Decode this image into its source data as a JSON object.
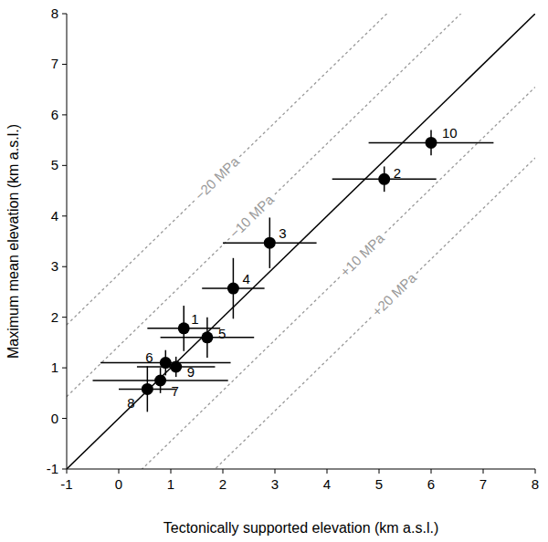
{
  "chart_data": {
    "type": "scatter",
    "x_label": "Tectonically supported elevation (km a.s.l.)",
    "y_label": "Maximum mean elevation (km a.s.l.)",
    "xlim": [
      -1,
      8
    ],
    "ylim": [
      -1,
      8
    ],
    "xticks": [
      -1,
      0,
      1,
      2,
      3,
      4,
      5,
      6,
      7,
      8
    ],
    "yticks": [
      -1,
      0,
      1,
      2,
      3,
      4,
      5,
      6,
      7,
      8
    ],
    "grid": false,
    "series": [
      {
        "color": "#000000",
        "marker": "circle",
        "point_labels": [
          "1",
          "2",
          "3",
          "4",
          "5",
          "6",
          "7",
          "8",
          "9",
          "10"
        ],
        "x": [
          1.25,
          5.1,
          2.9,
          2.2,
          1.7,
          0.9,
          0.8,
          0.55,
          1.1,
          6.0
        ],
        "values": [
          1.78,
          4.73,
          3.47,
          2.57,
          1.6,
          1.1,
          0.75,
          0.58,
          1.02,
          5.45
        ],
        "x_errors": [
          0.7,
          1.0,
          0.9,
          0.6,
          0.9,
          1.25,
          1.3,
          0.55,
          0.75,
          1.2
        ],
        "y_errors": [
          0.45,
          0.25,
          0.5,
          0.6,
          0.4,
          0.25,
          0.25,
          0.45,
          0.2,
          0.25
        ]
      }
    ],
    "reference_lines": [
      {
        "offset": 0,
        "color": "#000000",
        "line_style": "solid"
      },
      {
        "label": "−20 MPa",
        "offset": 2.85,
        "color": "#999999",
        "line_style": "dotted"
      },
      {
        "label": "−10 MPa",
        "offset": 1.43,
        "color": "#999999",
        "line_style": "dotted"
      },
      {
        "label": "+10 MPa",
        "offset": -1.45,
        "color": "#999999",
        "line_style": "dotted"
      },
      {
        "label": "+20 MPa",
        "offset": -2.85,
        "color": "#999999",
        "line_style": "dotted"
      }
    ]
  }
}
